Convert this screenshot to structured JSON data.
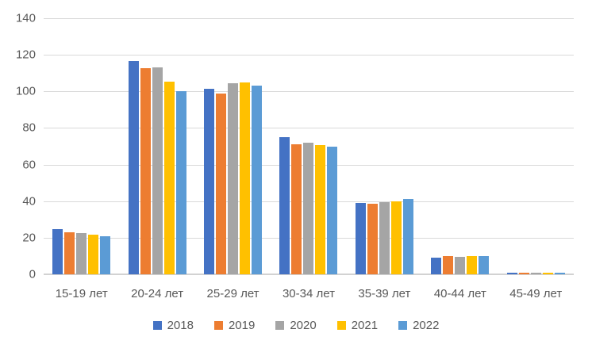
{
  "chart_data": {
    "type": "bar",
    "title": "",
    "xlabel": "",
    "ylabel": "",
    "categories": [
      "15-19 лет",
      "20-24 лет",
      "25-29 лет",
      "30-34 лет",
      "35-39 лет",
      "40-44 лет",
      "45-49 лет"
    ],
    "series": [
      {
        "name": "2018",
        "color": "#4472C4",
        "values": [
          24.5,
          116.5,
          101.5,
          75,
          39,
          9,
          1
        ]
      },
      {
        "name": "2019",
        "color": "#ED7D31",
        "values": [
          23,
          112.5,
          99,
          71,
          38.5,
          10,
          1
        ]
      },
      {
        "name": "2020",
        "color": "#A5A5A5",
        "values": [
          22.5,
          113,
          104.5,
          72,
          39.5,
          9.5,
          1
        ]
      },
      {
        "name": "2021",
        "color": "#FFC000",
        "values": [
          21.5,
          105.5,
          105,
          70.5,
          40,
          10,
          1
        ]
      },
      {
        "name": "2022",
        "color": "#5B9BD5",
        "values": [
          21,
          100,
          103,
          70,
          41,
          10,
          1
        ]
      }
    ],
    "ylim": [
      0,
      140
    ],
    "yticks": [
      0,
      20,
      40,
      60,
      80,
      100,
      120,
      140
    ],
    "grid": true,
    "legend_position": "bottom"
  },
  "style": {
    "background_color": "#FFFFFF",
    "gridline_color": "#D9D9D9",
    "axis_text_color": "#595959"
  }
}
